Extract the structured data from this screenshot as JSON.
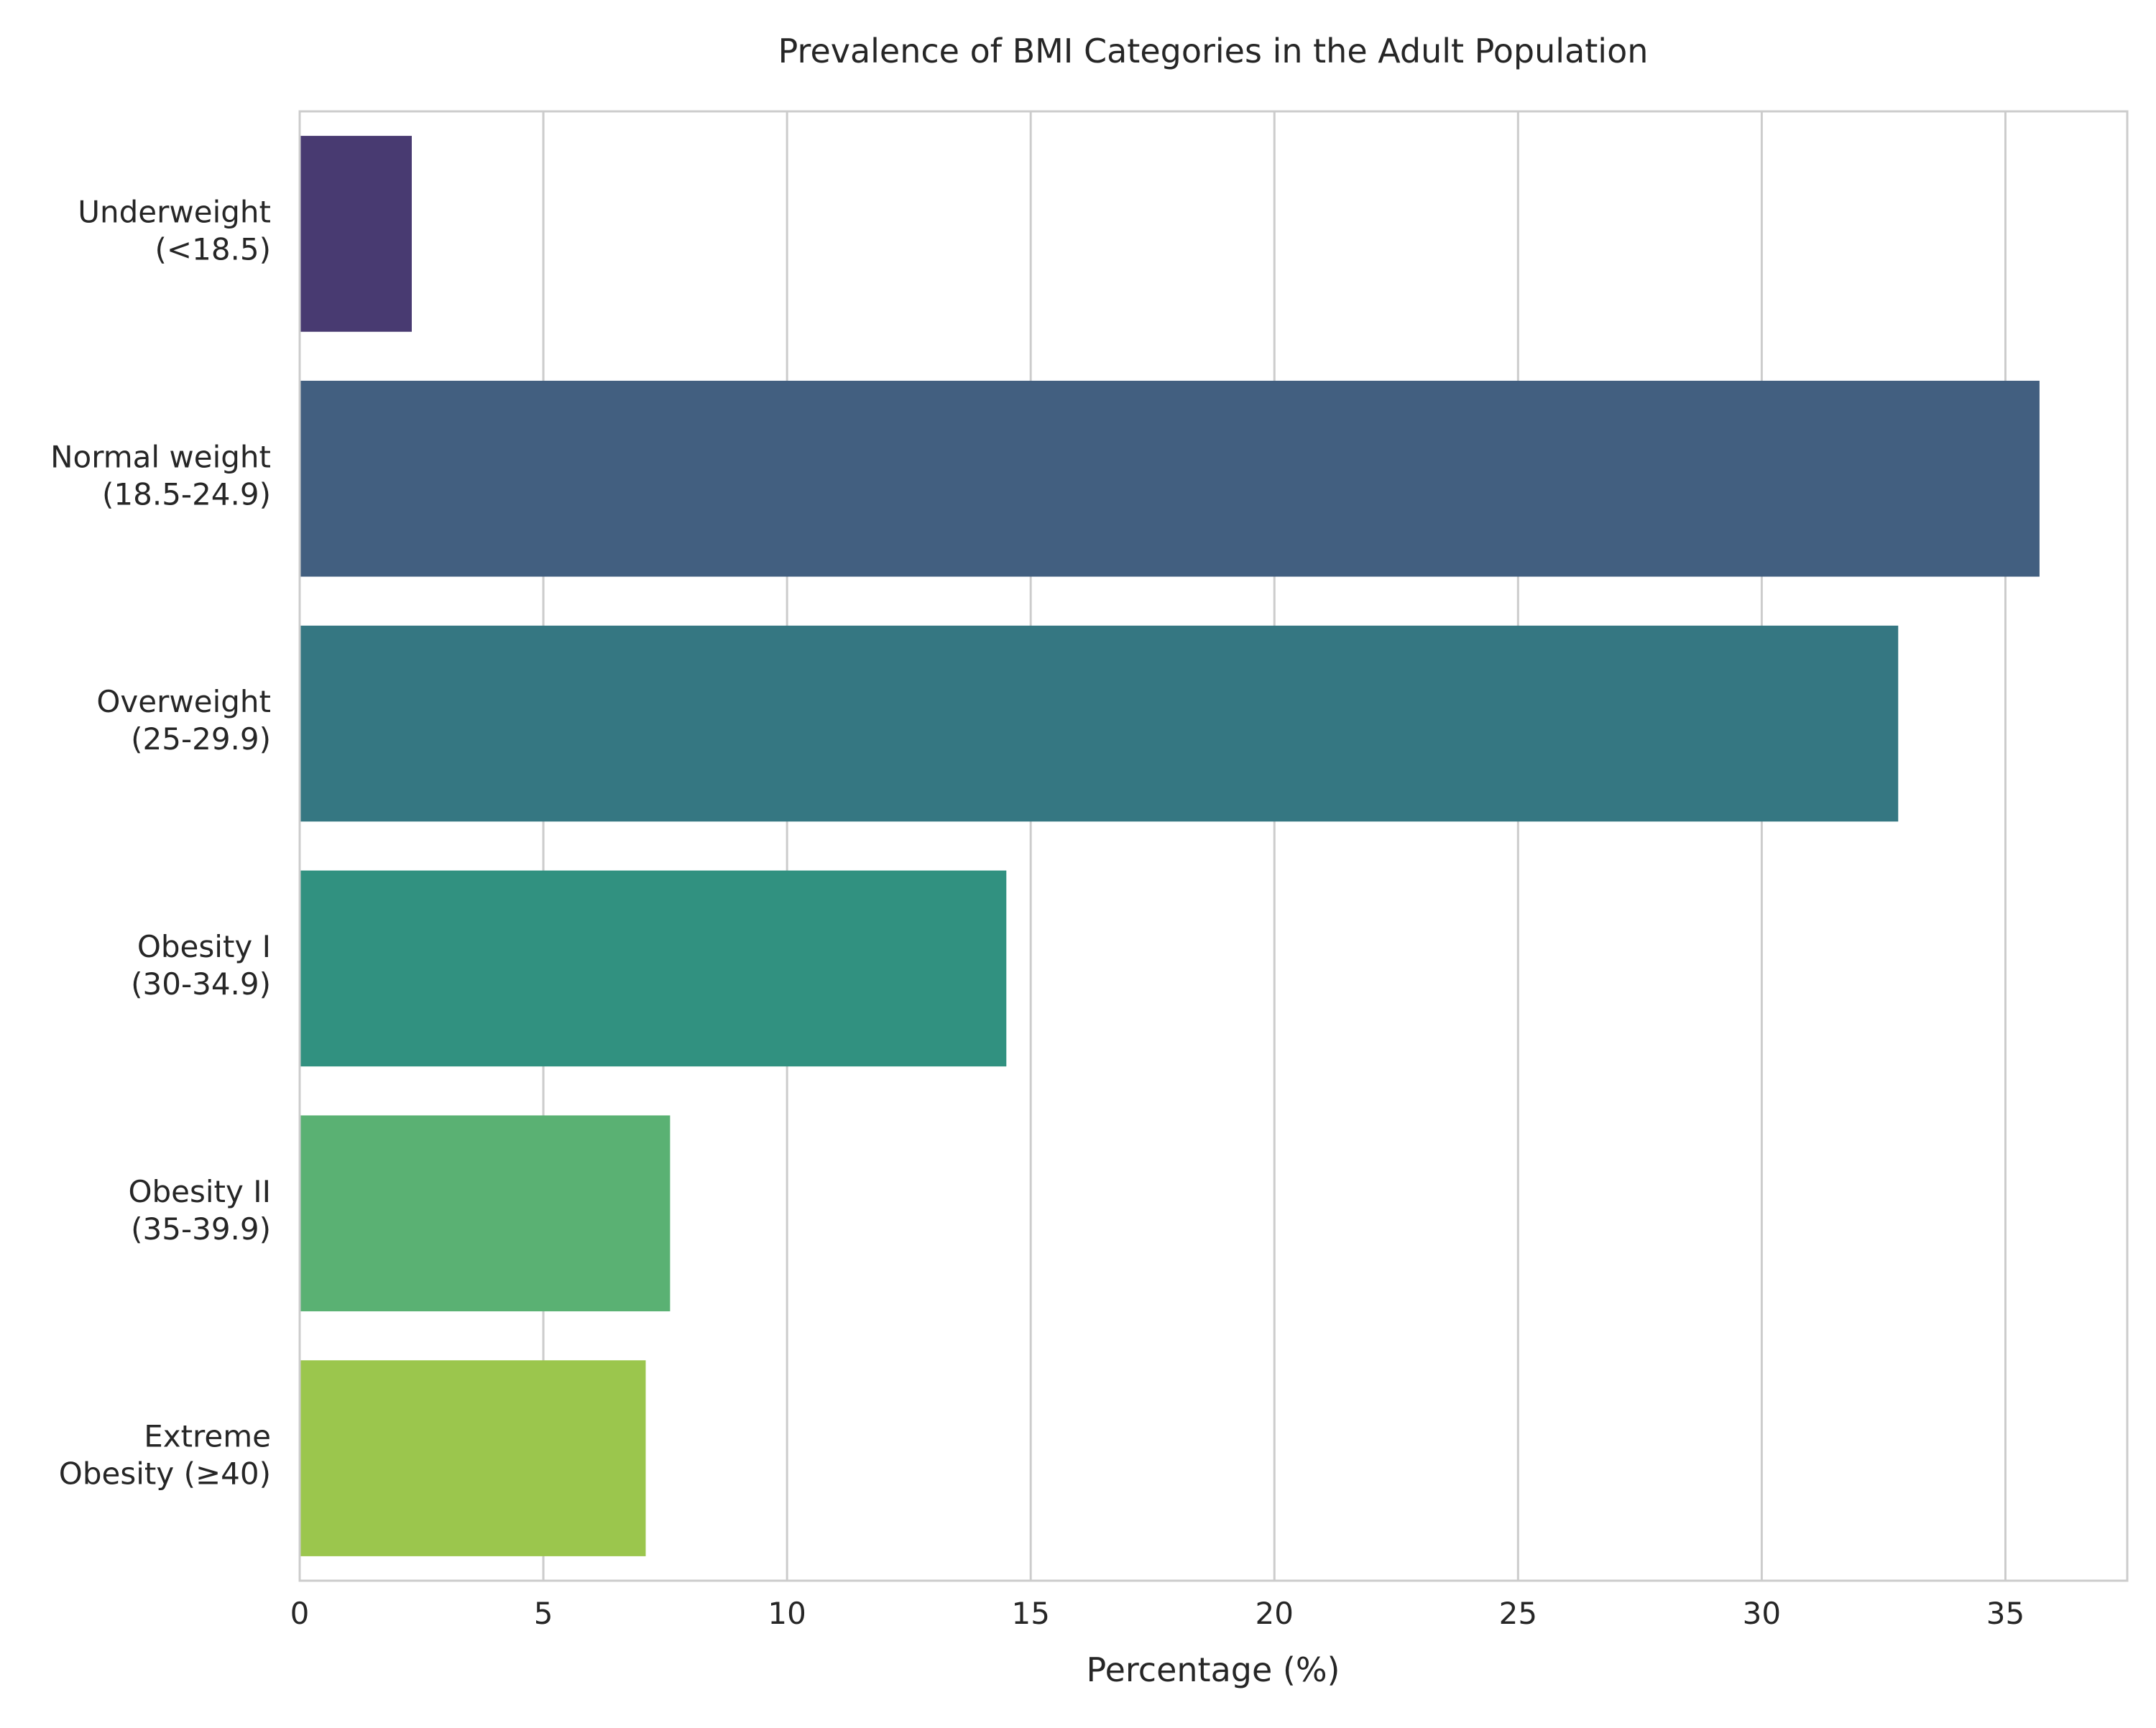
{
  "chart_data": {
    "type": "bar",
    "orientation": "horizontal",
    "title": "Prevalence of BMI Categories in the Adult Population",
    "xlabel": "Percentage (%)",
    "ylabel": "",
    "categories": [
      [
        "Underweight",
        "(<18.5)"
      ],
      [
        "Normal weight",
        "(18.5-24.9)"
      ],
      [
        "Overweight",
        "(25-29.9)"
      ],
      [
        "Obesity I",
        "(30-34.9)"
      ],
      [
        "Obesity II",
        "(35-39.9)"
      ],
      [
        "Extreme",
        "Obesity (≥40)"
      ]
    ],
    "values": [
      2.3,
      35.7,
      32.8,
      14.5,
      7.6,
      7.1
    ],
    "colors": [
      "#483a71",
      "#425f80",
      "#357782",
      "#319180",
      "#5ab173",
      "#9bc64d"
    ],
    "xlim": [
      0,
      37.5
    ],
    "xticks": [
      0,
      5,
      10,
      15,
      20,
      25,
      30,
      35
    ],
    "grid": true,
    "legend": "none"
  }
}
